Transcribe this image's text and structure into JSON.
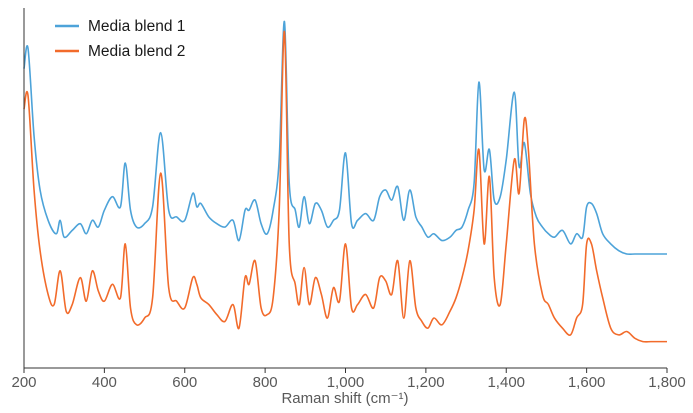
{
  "chart_data": {
    "type": "line",
    "title": "",
    "xlabel": "Raman shift (cm⁻¹)",
    "ylabel": "",
    "xlim": [
      200,
      1800
    ],
    "ylim": [
      0,
      1
    ],
    "x_ticks": [
      200,
      400,
      600,
      800,
      1000,
      1200,
      1400,
      1600,
      1800
    ],
    "x_tick_labels": [
      "200",
      "400",
      "600",
      "800",
      "1,000",
      "1,200",
      "1,400",
      "1,600",
      "1,800"
    ],
    "grid": false,
    "legend_position": "top-left",
    "series": [
      {
        "name": "Media blend 1",
        "color": "#4da3d9",
        "x": [
          200,
          210,
          225,
          240,
          260,
          280,
          290,
          300,
          320,
          340,
          355,
          370,
          385,
          400,
          420,
          440,
          452,
          465,
          480,
          500,
          520,
          540,
          560,
          580,
          600,
          620,
          630,
          640,
          660,
          680,
          700,
          720,
          735,
          750,
          760,
          775,
          790,
          805,
          820,
          835,
          848,
          860,
          875,
          885,
          897,
          910,
          925,
          940,
          955,
          970,
          985,
          1000,
          1015,
          1030,
          1050,
          1070,
          1085,
          1100,
          1115,
          1130,
          1145,
          1160,
          1175,
          1190,
          1205,
          1220,
          1240,
          1260,
          1275,
          1290,
          1305,
          1320,
          1332,
          1345,
          1358,
          1370,
          1385,
          1400,
          1420,
          1432,
          1445,
          1460,
          1475,
          1490,
          1505,
          1520,
          1540,
          1560,
          1575,
          1590,
          1600,
          1612,
          1625,
          1640,
          1660,
          1680,
          1700,
          1720,
          1740,
          1760,
          1780,
          1800
        ],
        "values": [
          0.82,
          0.88,
          0.62,
          0.46,
          0.37,
          0.33,
          0.37,
          0.32,
          0.34,
          0.36,
          0.33,
          0.37,
          0.35,
          0.4,
          0.44,
          0.41,
          0.54,
          0.4,
          0.35,
          0.36,
          0.41,
          0.63,
          0.4,
          0.38,
          0.37,
          0.45,
          0.41,
          0.42,
          0.38,
          0.36,
          0.35,
          0.37,
          0.31,
          0.4,
          0.4,
          0.43,
          0.36,
          0.33,
          0.4,
          0.55,
          0.96,
          0.48,
          0.4,
          0.35,
          0.44,
          0.36,
          0.42,
          0.4,
          0.35,
          0.37,
          0.4,
          0.57,
          0.36,
          0.37,
          0.39,
          0.37,
          0.44,
          0.46,
          0.43,
          0.47,
          0.37,
          0.46,
          0.38,
          0.35,
          0.32,
          0.33,
          0.31,
          0.32,
          0.34,
          0.35,
          0.4,
          0.48,
          0.78,
          0.52,
          0.58,
          0.43,
          0.44,
          0.55,
          0.75,
          0.53,
          0.6,
          0.45,
          0.38,
          0.35,
          0.33,
          0.32,
          0.34,
          0.3,
          0.33,
          0.32,
          0.41,
          0.42,
          0.39,
          0.33,
          0.3,
          0.28,
          0.27,
          0.27,
          0.27,
          0.27,
          0.27,
          0.27
        ]
      },
      {
        "name": "Media blend 2",
        "color": "#f26b2b",
        "x": [
          200,
          210,
          225,
          240,
          260,
          275,
          290,
          305,
          320,
          340,
          355,
          370,
          385,
          400,
          420,
          440,
          452,
          465,
          480,
          500,
          520,
          540,
          560,
          580,
          600,
          620,
          630,
          640,
          660,
          680,
          700,
          720,
          735,
          750,
          760,
          775,
          790,
          805,
          820,
          835,
          848,
          860,
          875,
          885,
          897,
          910,
          925,
          940,
          955,
          970,
          985,
          1000,
          1015,
          1030,
          1050,
          1070,
          1085,
          1100,
          1115,
          1130,
          1145,
          1160,
          1175,
          1190,
          1205,
          1220,
          1240,
          1260,
          1275,
          1290,
          1305,
          1320,
          1332,
          1345,
          1358,
          1370,
          1385,
          1400,
          1420,
          1432,
          1445,
          1455,
          1470,
          1490,
          1505,
          1520,
          1540,
          1560,
          1575,
          1590,
          1600,
          1612,
          1625,
          1640,
          1660,
          1680,
          1700,
          1720,
          1740,
          1760,
          1780,
          1800
        ],
        "values": [
          0.7,
          0.74,
          0.46,
          0.28,
          0.15,
          0.12,
          0.22,
          0.1,
          0.12,
          0.2,
          0.13,
          0.22,
          0.16,
          0.13,
          0.18,
          0.14,
          0.3,
          0.11,
          0.06,
          0.08,
          0.14,
          0.51,
          0.17,
          0.13,
          0.11,
          0.2,
          0.18,
          0.14,
          0.12,
          0.09,
          0.07,
          0.12,
          0.05,
          0.2,
          0.18,
          0.25,
          0.11,
          0.09,
          0.14,
          0.4,
          0.93,
          0.3,
          0.18,
          0.12,
          0.23,
          0.12,
          0.2,
          0.15,
          0.08,
          0.17,
          0.13,
          0.3,
          0.11,
          0.12,
          0.15,
          0.11,
          0.2,
          0.19,
          0.15,
          0.25,
          0.08,
          0.25,
          0.11,
          0.07,
          0.05,
          0.08,
          0.06,
          0.1,
          0.14,
          0.2,
          0.28,
          0.4,
          0.58,
          0.3,
          0.5,
          0.2,
          0.12,
          0.3,
          0.55,
          0.45,
          0.67,
          0.58,
          0.3,
          0.15,
          0.12,
          0.08,
          0.05,
          0.03,
          0.08,
          0.12,
          0.3,
          0.3,
          0.22,
          0.14,
          0.05,
          0.03,
          0.04,
          0.02,
          0.01,
          0.01,
          0.01,
          0.01
        ]
      }
    ]
  }
}
